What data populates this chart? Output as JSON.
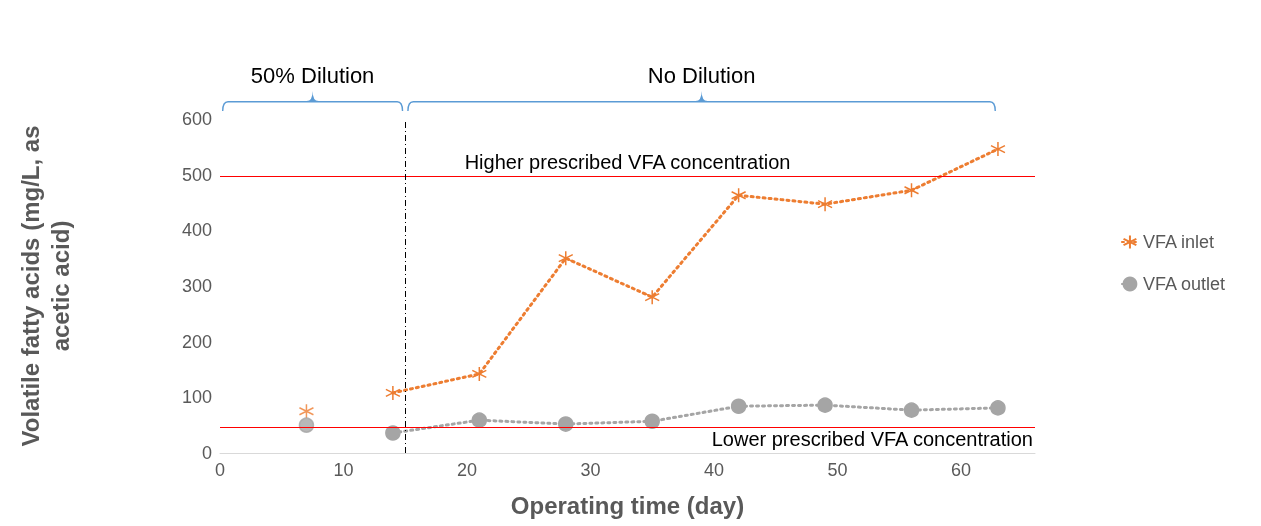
{
  "chart_data": {
    "type": "line",
    "xlabel": "Operating time (day)",
    "ylabel": "Volatile fatty acids (mg/L, as\nacetic acid)",
    "xlim": [
      0,
      66
    ],
    "xticks": [
      0,
      10,
      20,
      30,
      40,
      50,
      60
    ],
    "ylim": [
      0,
      600
    ],
    "yticks": [
      0,
      100,
      200,
      300,
      400,
      500,
      600
    ],
    "grid": false,
    "legend": "right",
    "line_style": "dotted",
    "series": [
      {
        "name": "VFA inlet",
        "color": "#ed7d31",
        "marker": "cross",
        "x": [
          14,
          21,
          28,
          35,
          42,
          49,
          56,
          63
        ],
        "values": [
          108,
          142,
          350,
          280,
          463,
          447,
          472,
          546
        ]
      },
      {
        "name": "VFA outlet",
        "color": "#a5a5a5",
        "marker": "circle",
        "x": [
          14,
          21,
          28,
          35,
          42,
          49,
          56,
          63
        ],
        "values": [
          36,
          59,
          52,
          57,
          84,
          86,
          77,
          81
        ]
      },
      {
        "type": "scatter",
        "color": "#ed7d31",
        "marker": "cross",
        "x": [
          7
        ],
        "values": [
          75
        ]
      },
      {
        "type": "scatter",
        "color": "#a5a5a5",
        "marker": "circle",
        "x": [
          7
        ],
        "values": [
          50
        ]
      }
    ],
    "ref_lines": [
      {
        "axis": "y",
        "value": 497,
        "label": "Higher prescribed VFA concentration",
        "color": "#ff0000",
        "line_style": "solid"
      },
      {
        "axis": "y",
        "value": 46,
        "label": "Lower prescribed VFA concentration",
        "color": "#ff0000",
        "line_style": "solid"
      },
      {
        "axis": "x",
        "value": 15,
        "color": "#000000",
        "line_style": "dashed"
      }
    ],
    "annotations": [
      "50% Dilution",
      "No Dilution"
    ]
  }
}
